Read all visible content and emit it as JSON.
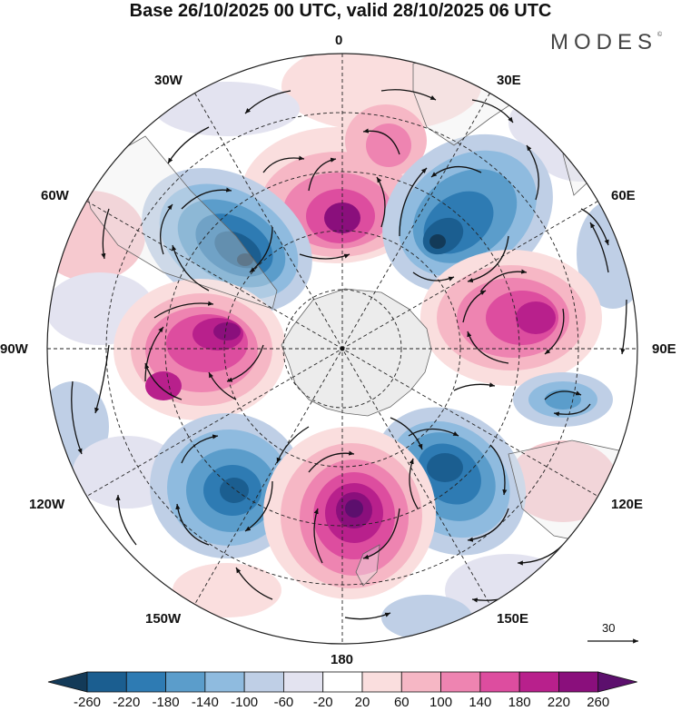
{
  "title": "Base 26/10/2025 00 UTC, valid 28/10/2025 06 UTC",
  "brand": {
    "name": "MODES",
    "mark": "©"
  },
  "longitude_labels": {
    "n": "0",
    "e30": "30E",
    "e60": "60E",
    "e90": "90E",
    "e120": "120E",
    "e150": "150E",
    "s": "180",
    "w150": "150W",
    "w120": "120W",
    "w90": "90W",
    "w60": "60W",
    "w30": "30W"
  },
  "reference_vector": {
    "value": "30"
  },
  "colorbar": {
    "ticks": [
      "-260",
      "-220",
      "-180",
      "-140",
      "-100",
      "-60",
      "-20",
      "20",
      "60",
      "100",
      "140",
      "180",
      "220",
      "260"
    ],
    "colors": [
      "#133a58",
      "#1b5e90",
      "#2e7bb3",
      "#5b9dcb",
      "#8fbbdf",
      "#bfcfe6",
      "#e3e3f0",
      "#ffffff",
      "#fadede",
      "#f6b7c5",
      "#ee84b1",
      "#dd4d9f",
      "#b8208c",
      "#8a0f7c",
      "#5c0f6d"
    ]
  },
  "anomalies": [
    {
      "id": "pos-north",
      "sign": "positive",
      "peak": 220
    },
    {
      "id": "pos-north-2",
      "sign": "positive",
      "peak": 140
    },
    {
      "id": "neg-ne",
      "sign": "negative",
      "peak": -220
    },
    {
      "id": "neg-nw",
      "sign": "negative",
      "peak": -220
    },
    {
      "id": "pos-east",
      "sign": "positive",
      "peak": 180
    },
    {
      "id": "pos-west",
      "sign": "positive",
      "peak": 220
    },
    {
      "id": "neg-east-small",
      "sign": "negative",
      "peak": -140
    },
    {
      "id": "neg-southeast",
      "sign": "negative",
      "peak": -220
    },
    {
      "id": "neg-southwest",
      "sign": "negative",
      "peak": -180
    },
    {
      "id": "pos-south",
      "sign": "positive",
      "peak": 260
    }
  ]
}
